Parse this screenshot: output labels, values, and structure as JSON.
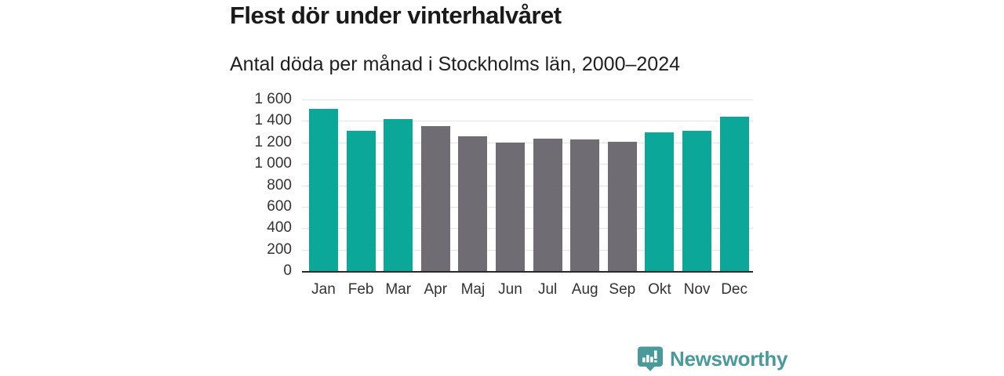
{
  "header": {
    "title": "Flest dör under vinterhalvåret",
    "subtitle": "Antal döda per månad i Stockholms län, 2000–2024"
  },
  "chart_data": {
    "type": "bar",
    "title": "Flest dör under vinterhalvåret",
    "subtitle": "Antal döda per månad i Stockholms län, 2000–2024",
    "categories": [
      "Jan",
      "Feb",
      "Mar",
      "Apr",
      "Maj",
      "Jun",
      "Jul",
      "Aug",
      "Sep",
      "Okt",
      "Nov",
      "Dec"
    ],
    "values": [
      1510,
      1305,
      1415,
      1350,
      1260,
      1195,
      1235,
      1225,
      1205,
      1295,
      1305,
      1440
    ],
    "highlighted": [
      true,
      true,
      true,
      false,
      false,
      false,
      false,
      false,
      false,
      true,
      true,
      true
    ],
    "colors": {
      "highlight": "#0ba89a",
      "muted": "#6f6d73",
      "gridline": "#e3e3e3",
      "axis": "#2a2a2a",
      "tick_text": "#333333"
    },
    "xlabel": "",
    "ylabel": "",
    "ylim": [
      0,
      1600
    ],
    "ytick_step": 200,
    "ytick_labels": [
      "0",
      "200",
      "400",
      "600",
      "800",
      "1 000",
      "1 200",
      "1 400",
      "1 600"
    ],
    "grid": "horizontal",
    "legend": "none"
  },
  "footer": {
    "brand": "Newsworthy",
    "brand_color": "#4a9a9c",
    "logo_icon": "newsworthy-speech-bubble-bar-chart-icon",
    "logo_color": "#4a9a9c"
  }
}
